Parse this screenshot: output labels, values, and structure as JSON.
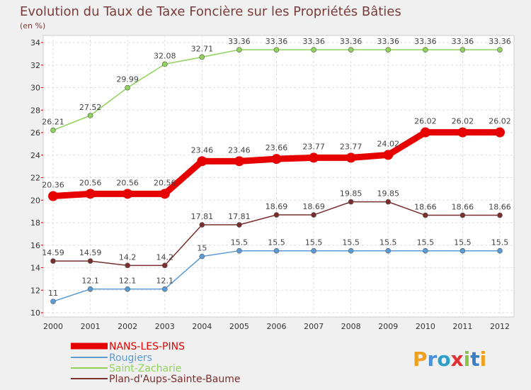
{
  "chart_data": {
    "type": "line",
    "title": "Evolution du Taux de Taxe Foncière sur les Propriétés Bâties",
    "subtitle": "(en %)",
    "x": [
      "2000",
      "2001",
      "2002",
      "2003",
      "2004",
      "2005",
      "2006",
      "2007",
      "2008",
      "2009",
      "2010",
      "2011",
      "2012"
    ],
    "ylim": [
      10,
      34
    ],
    "yticks": [
      10,
      12,
      14,
      16,
      18,
      20,
      22,
      24,
      26,
      28,
      30,
      32,
      34
    ],
    "grid": true,
    "legend_position": "bottom-left",
    "series": [
      {
        "name": "NANS-LES-PINS",
        "color": "#e60000",
        "values": [
          20.36,
          20.56,
          20.56,
          20.56,
          23.46,
          23.46,
          23.66,
          23.77,
          23.77,
          24.02,
          26.02,
          26.02,
          26.02
        ]
      },
      {
        "name": "Rougiers",
        "color": "#5b9bd5",
        "values": [
          11,
          12.1,
          12.1,
          12.1,
          15,
          15.5,
          15.5,
          15.5,
          15.5,
          15.5,
          15.5,
          15.5,
          15.5
        ]
      },
      {
        "name": "Saint-Zacharie",
        "color": "#8fd35a",
        "values": [
          26.21,
          27.52,
          29.99,
          32.08,
          32.71,
          33.36,
          33.36,
          33.36,
          33.36,
          33.36,
          33.36,
          33.36,
          33.36
        ]
      },
      {
        "name": "Plan-d'Aups-Sainte-Baume",
        "color": "#7b2e2e",
        "values": [
          14.59,
          14.59,
          14.2,
          14.2,
          17.81,
          17.81,
          18.69,
          18.69,
          19.85,
          19.85,
          18.66,
          18.66,
          18.66
        ]
      }
    ],
    "value_labels": [
      [
        "20.36",
        "20.56",
        "20.56",
        "20.56",
        "23.46",
        "23.46",
        "23.66",
        "23.77",
        "23.77",
        "24.02",
        "26.02",
        "26.02",
        "26.02"
      ],
      [
        "11",
        "12.1",
        "12.1",
        "12.1",
        "15",
        "15.5",
        "15.5",
        "15.5",
        "15.5",
        "15.5",
        "15.5",
        "15.5",
        "15.5"
      ],
      [
        "26.21",
        "27.52",
        "29.99",
        "32.08",
        "32.71",
        "33.36",
        "33.36",
        "33.36",
        "33.36",
        "33.36",
        "33.36",
        "33.36",
        "33.36"
      ],
      [
        "14.59",
        "14.59",
        "14.2",
        "14.2",
        "17.81",
        "17.81",
        "18.69",
        "18.69",
        "19.85",
        "19.85",
        "18.66",
        "18.66",
        "18.66"
      ]
    ]
  },
  "logo": {
    "text": "Proxiti"
  }
}
